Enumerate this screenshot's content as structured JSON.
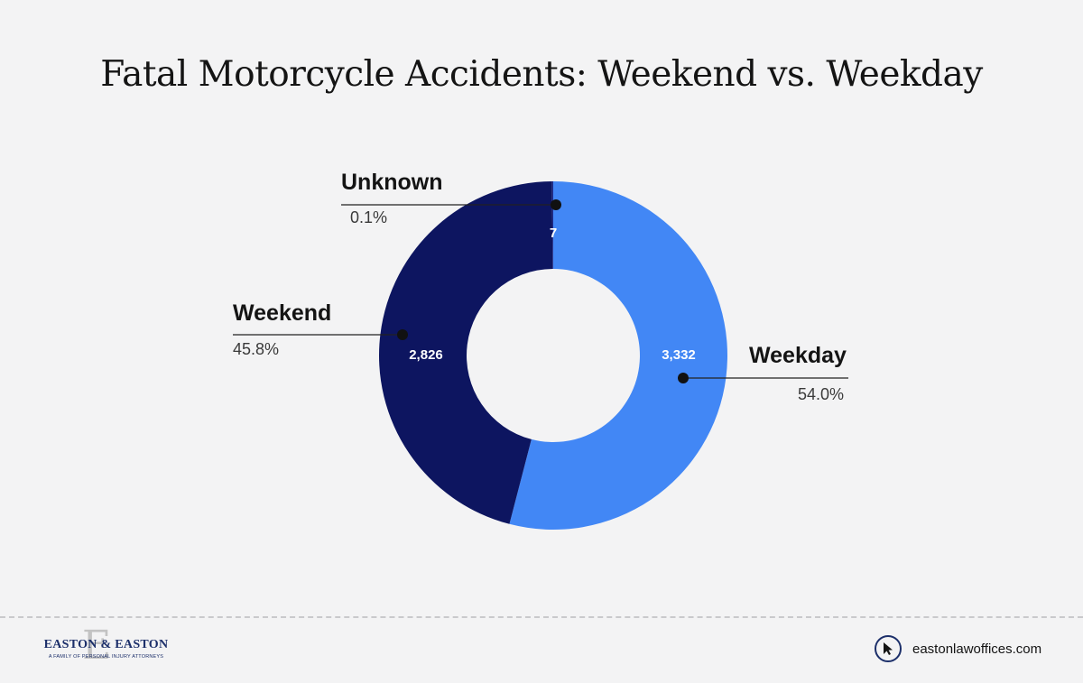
{
  "title": "Fatal Motorcycle Accidents: Weekend vs. Weekday",
  "chart_data": {
    "type": "pie",
    "donut": true,
    "title": "Fatal Motorcycle Accidents: Weekend vs. Weekday",
    "slices": [
      {
        "name": "Weekday",
        "value": 3332,
        "value_label": "3,332",
        "percent": "54.0%",
        "color": "#4287f5"
      },
      {
        "name": "Weekend",
        "value": 2826,
        "value_label": "2,826",
        "percent": "45.8%",
        "color": "#0d1560"
      },
      {
        "name": "Unknown",
        "value": 7,
        "value_label": "7",
        "percent": "0.1%",
        "color": "#1b2a8a"
      }
    ]
  },
  "footer": {
    "logo_text": "EASTON & EASTON",
    "logo_tagline": "A FAMILY OF PERSONAL INJURY ATTORNEYS",
    "website": "eastonlawoffices.com"
  },
  "icons": {
    "logo_mark": "letter-e-monogram",
    "website_icon": "cursor-icon"
  }
}
